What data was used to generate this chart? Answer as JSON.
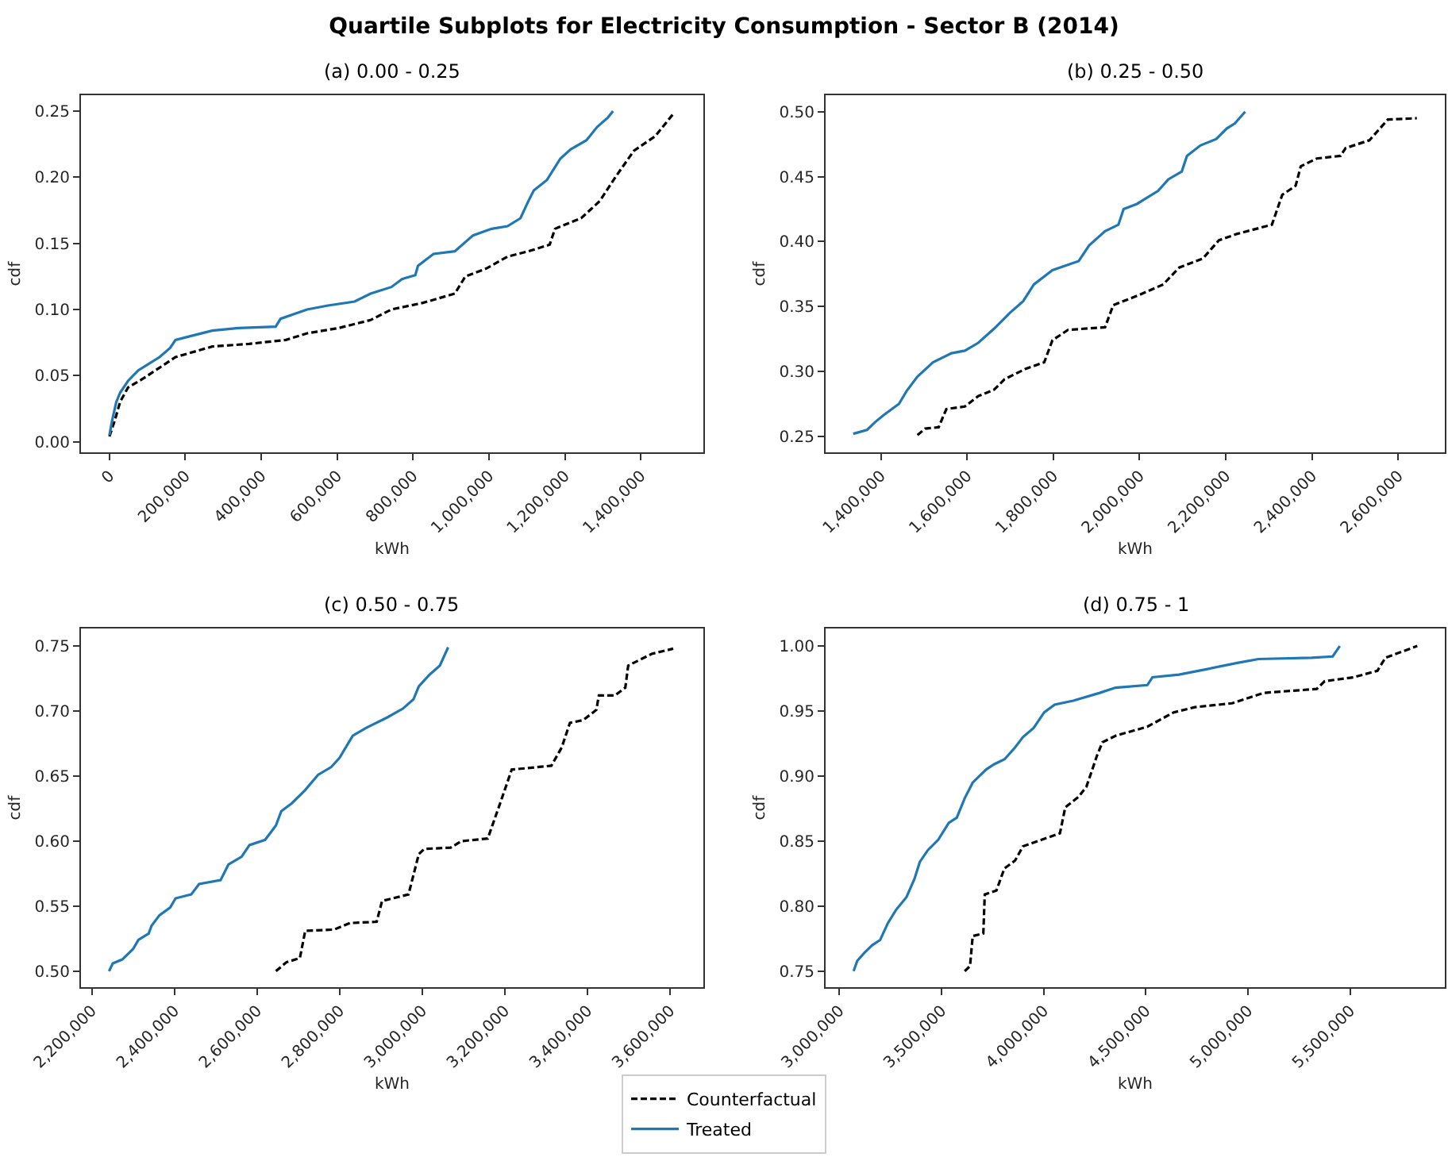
{
  "chart_data": [
    {
      "type": "line",
      "title": "Quartile Subplots for Electricity Consumption - Sector B (2014)",
      "subtitle": "(a) 0.00 - 0.25",
      "xlabel": "kWh",
      "ylabel": "cdf",
      "legend": "bottom",
      "grid": false,
      "xlim": [
        -75000,
        1565000
      ],
      "xticks": [
        0,
        {
          "value": 200000,
          "label": "200,000"
        },
        {
          "value": 400000,
          "label": "400,000"
        },
        {
          "value": 600000,
          "label": "600,000"
        },
        {
          "value": 800000,
          "label": "800,000"
        },
        {
          "value": 1000000,
          "label": "1,000,000"
        },
        {
          "value": 1200000,
          "label": "1,200,000"
        },
        {
          "value": 1400000,
          "label": "1,400,000"
        }
      ],
      "ylim": [
        -0.008,
        0.262
      ],
      "yticks": [
        {
          "value": 0,
          "label": "0.00"
        },
        {
          "value": 0.05,
          "label": "0.05"
        },
        {
          "value": 0.1,
          "label": "0.10"
        },
        {
          "value": 0.15,
          "label": "0.15"
        },
        {
          "value": 0.2,
          "label": "0.20"
        },
        {
          "value": 0.25,
          "label": "0.25"
        }
      ],
      "series": [
        {
          "name": "Counterfactual",
          "color": "#000000",
          "line_style": "dashed",
          "x": [
            0,
            14000,
            28000,
            49000,
            90000,
            132000,
            174000,
            271000,
            368000,
            465000,
            521000,
            604000,
            688000,
            743000,
            826000,
            910000,
            938000,
            993000,
            1049000,
            1104000,
            1160000,
            1174000,
            1243000,
            1292000,
            1333000,
            1382000,
            1438000,
            1486000
          ],
          "values": [
            0.004,
            0.016,
            0.03,
            0.041,
            0.048,
            0.056,
            0.064,
            0.072,
            0.074,
            0.077,
            0.082,
            0.086,
            0.092,
            0.1,
            0.105,
            0.112,
            0.125,
            0.131,
            0.14,
            0.144,
            0.149,
            0.161,
            0.169,
            0.182,
            0.2,
            0.22,
            0.231,
            0.248
          ]
        },
        {
          "name": "Treated",
          "color": "#1f77b4",
          "line_style": "solid",
          "x": [
            0,
            7000,
            18000,
            28000,
            49000,
            76000,
            104000,
            132000,
            160000,
            174000,
            215000,
            271000,
            340000,
            438000,
            451000,
            521000,
            576000,
            646000,
            688000,
            743000,
            771000,
            806000,
            813000,
            854000,
            910000,
            958000,
            1007000,
            1049000,
            1083000,
            1104000,
            1118000,
            1153000,
            1188000,
            1215000,
            1257000,
            1285000,
            1313000,
            1327000
          ],
          "values": [
            0.005,
            0.016,
            0.03,
            0.037,
            0.046,
            0.054,
            0.059,
            0.064,
            0.071,
            0.077,
            0.08,
            0.084,
            0.086,
            0.087,
            0.093,
            0.1,
            0.103,
            0.106,
            0.112,
            0.117,
            0.123,
            0.126,
            0.133,
            0.142,
            0.144,
            0.156,
            0.161,
            0.163,
            0.169,
            0.182,
            0.19,
            0.198,
            0.214,
            0.221,
            0.228,
            0.238,
            0.245,
            0.25
          ]
        }
      ]
    },
    {
      "type": "line",
      "title": "(b) 0.25 - 0.50",
      "xlabel": "kWh",
      "ylabel": "cdf",
      "legend": "bottom",
      "grid": false,
      "xlim": [
        1272000,
        2708000
      ],
      "xticks": [
        {
          "value": 1400000,
          "label": "1,400,000"
        },
        {
          "value": 1600000,
          "label": "1,600,000"
        },
        {
          "value": 1800000,
          "label": "1,800,000"
        },
        {
          "value": 2000000,
          "label": "2,000,000"
        },
        {
          "value": 2200000,
          "label": "2,200,000"
        },
        {
          "value": 2400000,
          "label": "2,400,000"
        },
        {
          "value": 2600000,
          "label": "2,600,000"
        }
      ],
      "ylim": [
        0.2377,
        0.5127
      ],
      "yticks": [
        {
          "value": 0.25,
          "label": "0.25"
        },
        {
          "value": 0.3,
          "label": "0.30"
        },
        {
          "value": 0.35,
          "label": "0.35"
        },
        {
          "value": 0.4,
          "label": "0.40"
        },
        {
          "value": 0.45,
          "label": "0.45"
        },
        {
          "value": 0.5,
          "label": "0.50"
        }
      ],
      "series": [
        {
          "name": "Counterfactual",
          "color": "#000000",
          "line_style": "dashed",
          "x": [
            1485000,
            1503000,
            1534000,
            1552000,
            1595000,
            1626000,
            1663000,
            1687000,
            1736000,
            1779000,
            1798000,
            1834000,
            1920000,
            1939000,
            2000000,
            2055000,
            2092000,
            2147000,
            2184000,
            2227000,
            2307000,
            2331000,
            2362000,
            2374000,
            2411000,
            2466000,
            2478000,
            2533000,
            2576000,
            2643000
          ],
          "values": [
            0.251,
            0.256,
            0.257,
            0.271,
            0.273,
            0.281,
            0.286,
            0.294,
            0.302,
            0.307,
            0.324,
            0.332,
            0.334,
            0.351,
            0.359,
            0.367,
            0.38,
            0.387,
            0.401,
            0.406,
            0.413,
            0.436,
            0.443,
            0.458,
            0.464,
            0.466,
            0.472,
            0.478,
            0.494,
            0.495
          ]
        },
        {
          "name": "Treated",
          "color": "#1f77b4",
          "line_style": "solid",
          "x": [
            1336000,
            1368000,
            1387000,
            1405000,
            1442000,
            1460000,
            1485000,
            1521000,
            1564000,
            1595000,
            1626000,
            1663000,
            1699000,
            1730000,
            1755000,
            1798000,
            1859000,
            1883000,
            1920000,
            1951000,
            1963000,
            1994000,
            2043000,
            2067000,
            2098000,
            2110000,
            2141000,
            2178000,
            2202000,
            2221000,
            2245000
          ],
          "values": [
            0.252,
            0.255,
            0.261,
            0.266,
            0.275,
            0.285,
            0.296,
            0.307,
            0.314,
            0.316,
            0.322,
            0.333,
            0.345,
            0.354,
            0.367,
            0.378,
            0.385,
            0.397,
            0.408,
            0.413,
            0.425,
            0.429,
            0.439,
            0.448,
            0.454,
            0.466,
            0.474,
            0.479,
            0.487,
            0.491,
            0.5
          ]
        }
      ]
    },
    {
      "type": "line",
      "title": "(c) 0.50 - 0.75",
      "xlabel": "kWh",
      "ylabel": "cdf",
      "legend": "bottom",
      "grid": false,
      "xlim": [
        2174000,
        3681000
      ],
      "xticks": [
        {
          "value": 2200000,
          "label": "2,200,000"
        },
        {
          "value": 2400000,
          "label": "2,400,000"
        },
        {
          "value": 2600000,
          "label": "2,600,000"
        },
        {
          "value": 2800000,
          "label": "2,800,000"
        },
        {
          "value": 3000000,
          "label": "3,000,000"
        },
        {
          "value": 3200000,
          "label": "3,200,000"
        },
        {
          "value": 3400000,
          "label": "3,400,000"
        },
        {
          "value": 3600000,
          "label": "3,600,000"
        }
      ],
      "ylim": [
        0.4877,
        0.7635
      ],
      "yticks": [
        {
          "value": 0.5,
          "label": "0.50"
        },
        {
          "value": 0.55,
          "label": "0.55"
        },
        {
          "value": 0.6,
          "label": "0.60"
        },
        {
          "value": 0.65,
          "label": "0.65"
        },
        {
          "value": 0.7,
          "label": "0.70"
        },
        {
          "value": 0.75,
          "label": "0.75"
        }
      ],
      "series": [
        {
          "name": "Counterfactual",
          "color": "#000000",
          "line_style": "dashed",
          "x": [
            2646000,
            2672000,
            2704000,
            2717000,
            2787000,
            2825000,
            2890000,
            2903000,
            2967000,
            2992000,
            3005000,
            3069000,
            3095000,
            3159000,
            3191000,
            3217000,
            3313000,
            3338000,
            3358000,
            3390000,
            3422000,
            3428000,
            3467000,
            3492000,
            3499000,
            3556000,
            3608000
          ],
          "values": [
            0.5,
            0.507,
            0.51,
            0.531,
            0.532,
            0.537,
            0.538,
            0.554,
            0.559,
            0.59,
            0.594,
            0.595,
            0.6,
            0.602,
            0.631,
            0.655,
            0.658,
            0.672,
            0.691,
            0.693,
            0.701,
            0.712,
            0.712,
            0.718,
            0.735,
            0.744,
            0.748
          ]
        },
        {
          "name": "Treated",
          "color": "#1f77b4",
          "line_style": "solid",
          "x": [
            2242000,
            2251000,
            2274000,
            2300000,
            2313000,
            2338000,
            2345000,
            2364000,
            2390000,
            2403000,
            2441000,
            2460000,
            2512000,
            2531000,
            2563000,
            2582000,
            2620000,
            2646000,
            2659000,
            2684000,
            2716000,
            2748000,
            2780000,
            2800000,
            2832000,
            2864000,
            2915000,
            2954000,
            2979000,
            2992000,
            3018000,
            3043000,
            3063000
          ],
          "values": [
            0.5,
            0.506,
            0.509,
            0.517,
            0.524,
            0.529,
            0.535,
            0.543,
            0.549,
            0.556,
            0.559,
            0.567,
            0.57,
            0.582,
            0.588,
            0.597,
            0.601,
            0.612,
            0.623,
            0.629,
            0.639,
            0.651,
            0.657,
            0.664,
            0.681,
            0.687,
            0.695,
            0.702,
            0.709,
            0.719,
            0.728,
            0.735,
            0.749
          ]
        }
      ]
    },
    {
      "type": "line",
      "title": "(d) 0.75 - 1",
      "xlabel": "kWh",
      "ylabel": "cdf",
      "legend": "bottom",
      "grid": false,
      "xlim": [
        2933000,
        5964000
      ],
      "xticks": [
        {
          "value": 3000000,
          "label": "3,000,000"
        },
        {
          "value": 3500000,
          "label": "3,500,000"
        },
        {
          "value": 4000000,
          "label": "4,000,000"
        },
        {
          "value": 4500000,
          "label": "4,500,000"
        },
        {
          "value": 5000000,
          "label": "5,000,000"
        },
        {
          "value": 5500000,
          "label": "5,500,000"
        }
      ],
      "ylim": [
        0.7377,
        1.0135
      ],
      "yticks": [
        {
          "value": 0.75,
          "label": "0.75"
        },
        {
          "value": 0.8,
          "label": "0.80"
        },
        {
          "value": 0.85,
          "label": "0.85"
        },
        {
          "value": 0.9,
          "label": "0.90"
        },
        {
          "value": 0.95,
          "label": "0.95"
        },
        {
          "value": 1,
          "label": "1.00"
        }
      ],
      "series": [
        {
          "name": "Counterfactual",
          "color": "#000000",
          "line_style": "dashed",
          "x": [
            3614000,
            3640000,
            3653000,
            3705000,
            3712000,
            3769000,
            3808000,
            3860000,
            3899000,
            3990000,
            4080000,
            4106000,
            4171000,
            4210000,
            4262000,
            4288000,
            4352000,
            4508000,
            4637000,
            4741000,
            4922000,
            5078000,
            5337000,
            5376000,
            5518000,
            5634000,
            5673000,
            5829000
          ],
          "values": [
            0.75,
            0.754,
            0.777,
            0.779,
            0.809,
            0.812,
            0.829,
            0.835,
            0.846,
            0.851,
            0.856,
            0.876,
            0.884,
            0.892,
            0.916,
            0.926,
            0.931,
            0.938,
            0.949,
            0.953,
            0.956,
            0.964,
            0.967,
            0.973,
            0.976,
            0.981,
            0.991,
            1.0
          ]
        },
        {
          "name": "Treated",
          "color": "#1f77b4",
          "line_style": "solid",
          "x": [
            3070000,
            3088000,
            3122000,
            3161000,
            3200000,
            3238000,
            3277000,
            3329000,
            3368000,
            3394000,
            3433000,
            3484000,
            3536000,
            3575000,
            3614000,
            3653000,
            3718000,
            3757000,
            3809000,
            3860000,
            3899000,
            3951000,
            4003000,
            4054000,
            4145000,
            4275000,
            4352000,
            4508000,
            4533000,
            4663000,
            4792000,
            4948000,
            5052000,
            5311000,
            5415000,
            5450000
          ],
          "values": [
            0.75,
            0.758,
            0.764,
            0.77,
            0.774,
            0.787,
            0.797,
            0.807,
            0.821,
            0.834,
            0.843,
            0.851,
            0.864,
            0.868,
            0.883,
            0.895,
            0.905,
            0.909,
            0.913,
            0.922,
            0.93,
            0.937,
            0.949,
            0.955,
            0.958,
            0.964,
            0.968,
            0.97,
            0.976,
            0.978,
            0.982,
            0.987,
            0.99,
            0.991,
            0.992,
            1.0
          ]
        }
      ]
    }
  ]
}
